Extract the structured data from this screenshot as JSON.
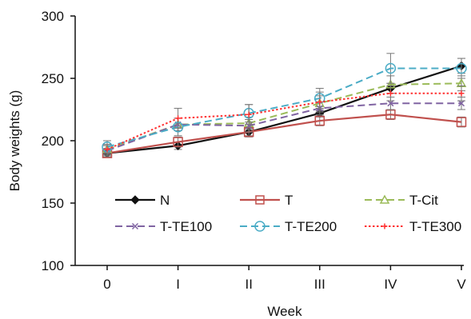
{
  "chart_data": {
    "type": "line",
    "xlabel": "Week",
    "ylabel": "Body weights (g)",
    "categories": [
      "0",
      "I",
      "II",
      "III",
      "IV",
      "V"
    ],
    "ylim": [
      100,
      300
    ],
    "yticks": [
      100,
      150,
      200,
      250,
      300
    ],
    "grid": false,
    "legend_position": "inside-lower",
    "series": [
      {
        "name": "N",
        "color": "#111111",
        "dash": "solid",
        "marker": "diamond",
        "values": [
          190,
          196,
          207,
          222,
          242,
          260
        ],
        "errors": [
          3,
          3,
          3,
          3,
          4,
          6
        ]
      },
      {
        "name": "T",
        "color": "#c0504d",
        "dash": "solid",
        "marker": "square",
        "values": [
          190,
          199,
          207,
          216,
          221,
          215
        ],
        "errors": [
          3,
          4,
          4,
          4,
          4,
          4
        ]
      },
      {
        "name": "T-Cit",
        "color": "#9bbb59",
        "dash": "dash",
        "marker": "triangle",
        "values": [
          193,
          213,
          214,
          230,
          245,
          246
        ],
        "errors": [
          4,
          5,
          5,
          6,
          7,
          6
        ]
      },
      {
        "name": "T-TE100",
        "color": "#8064a2",
        "dash": "dash",
        "marker": "x",
        "values": [
          192,
          213,
          212,
          226,
          230,
          230
        ],
        "errors": [
          4,
          5,
          5,
          5,
          5,
          5
        ]
      },
      {
        "name": "T-TE200",
        "color": "#4bacc6",
        "dash": "dash",
        "marker": "circle",
        "values": [
          195,
          211,
          222,
          234,
          258,
          258
        ],
        "errors": [
          5,
          7,
          7,
          8,
          12,
          8
        ]
      },
      {
        "name": "T-TE300",
        "color": "#ff3333",
        "dash": "dot",
        "marker": "plus",
        "values": [
          193,
          218,
          221,
          231,
          238,
          238
        ],
        "errors": [
          4,
          8,
          8,
          8,
          6,
          6
        ]
      }
    ]
  }
}
